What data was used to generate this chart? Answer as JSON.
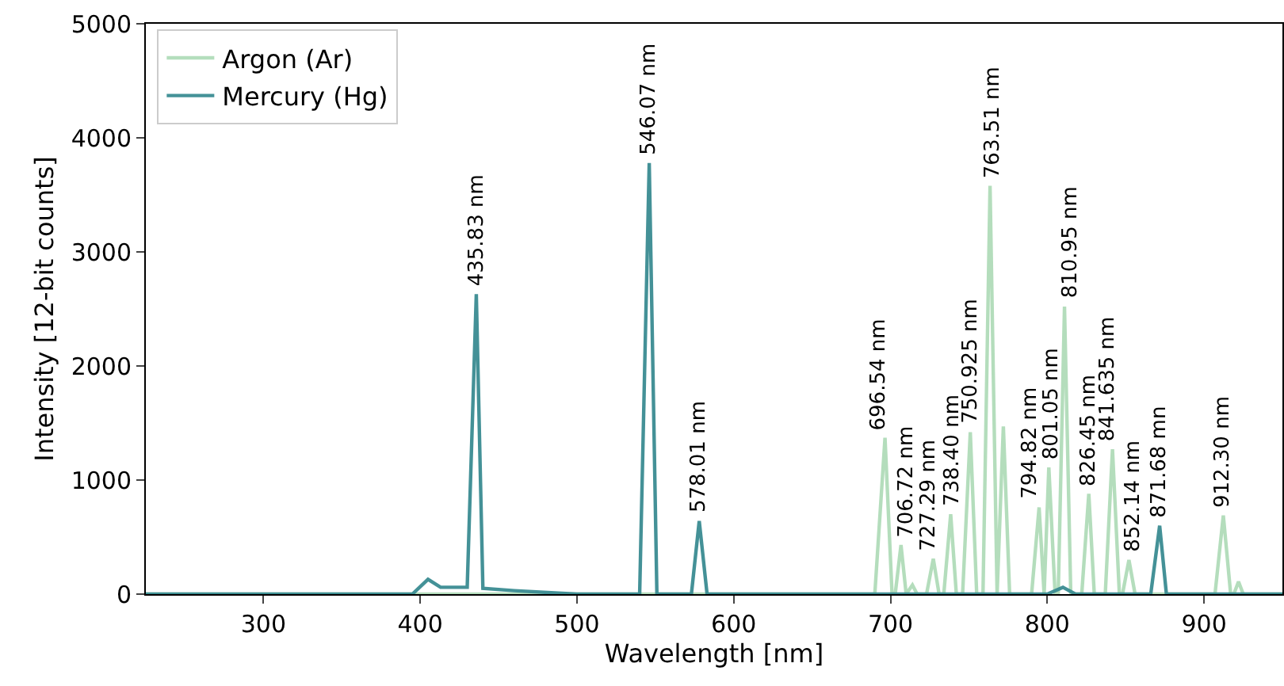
{
  "chart_data": {
    "type": "line",
    "xlabel": "Wavelength [nm]",
    "ylabel": "Intensity [12-bit counts]",
    "xlim": [
      225,
      950
    ],
    "ylim": [
      0,
      5000
    ],
    "xticks": [
      300,
      400,
      500,
      600,
      700,
      800,
      900
    ],
    "yticks": [
      0,
      1000,
      2000,
      3000,
      4000,
      5000
    ],
    "legend": "top left",
    "marker": "none",
    "line_style": "solid",
    "series": [
      {
        "name": "Argon (Ar)",
        "color": "#b0dcb9",
        "x": [
          225,
          690,
          696.5,
          701,
          703,
          706.7,
          710,
          714,
          717,
          723,
          727.3,
          731,
          734,
          738.4,
          742,
          746,
          750.9,
          755,
          759,
          763.5,
          768,
          772,
          776,
          790,
          794.8,
          798,
          801,
          805,
          807,
          811,
          815,
          822,
          826.5,
          830,
          837,
          841.6,
          846,
          848,
          852.1,
          856,
          907,
          912.3,
          917,
          919,
          922,
          925,
          950
        ],
        "values": [
          0,
          0,
          1370,
          0,
          0,
          430,
          0,
          80,
          0,
          0,
          310,
          0,
          0,
          700,
          0,
          0,
          1420,
          0,
          0,
          3580,
          0,
          1470,
          0,
          0,
          760,
          0,
          1110,
          0,
          0,
          2520,
          0,
          0,
          880,
          0,
          0,
          1270,
          0,
          0,
          300,
          0,
          0,
          690,
          0,
          0,
          110,
          0,
          0
        ]
      },
      {
        "name": "Mercury (Hg)",
        "color": "#3a8c92",
        "x": [
          225,
          395,
          405,
          413,
          430,
          435.8,
          440,
          460,
          500,
          540,
          546.1,
          551,
          573,
          578,
          583,
          800,
          810,
          818,
          866,
          871.7,
          876,
          950
        ],
        "values": [
          0,
          0,
          130,
          60,
          60,
          2630,
          50,
          30,
          0,
          0,
          3780,
          0,
          0,
          640,
          0,
          0,
          60,
          0,
          0,
          600,
          0,
          0
        ]
      }
    ],
    "annotations": [
      {
        "text": "435.83 nm",
        "x": 435.83,
        "y": 2630
      },
      {
        "text": "546.07 nm",
        "x": 546.07,
        "y": 3780
      },
      {
        "text": "578.01 nm",
        "x": 578.01,
        "y": 640
      },
      {
        "text": "871.68 mn",
        "x": 871.68,
        "y": 600
      },
      {
        "text": "696.54 nm",
        "x": 696.54,
        "y": 1370
      },
      {
        "text": "706.72 nm",
        "x": 706.72,
        "y": 430
      },
      {
        "text": "727.29 nm",
        "x": 727.29,
        "y": 310
      },
      {
        "text": "738.40 nm",
        "x": 738.4,
        "y": 700
      },
      {
        "text": "750.925 nm",
        "x": 750.925,
        "y": 1420
      },
      {
        "text": "763.51 nm",
        "x": 763.51,
        "y": 3580
      },
      {
        "text": "794.82 nm",
        "x": 794.82,
        "y": 760
      },
      {
        "text": "801.05 nm",
        "x": 801.05,
        "y": 1110
      },
      {
        "text": "810.95 nm",
        "x": 810.95,
        "y": 2520
      },
      {
        "text": "826.45 nm",
        "x": 826.45,
        "y": 880
      },
      {
        "text": "841.635 nm",
        "x": 841.635,
        "y": 1270
      },
      {
        "text": "852.14 nm",
        "x": 852.14,
        "y": 300
      },
      {
        "text": "912.30 nm",
        "x": 912.3,
        "y": 690
      }
    ]
  }
}
